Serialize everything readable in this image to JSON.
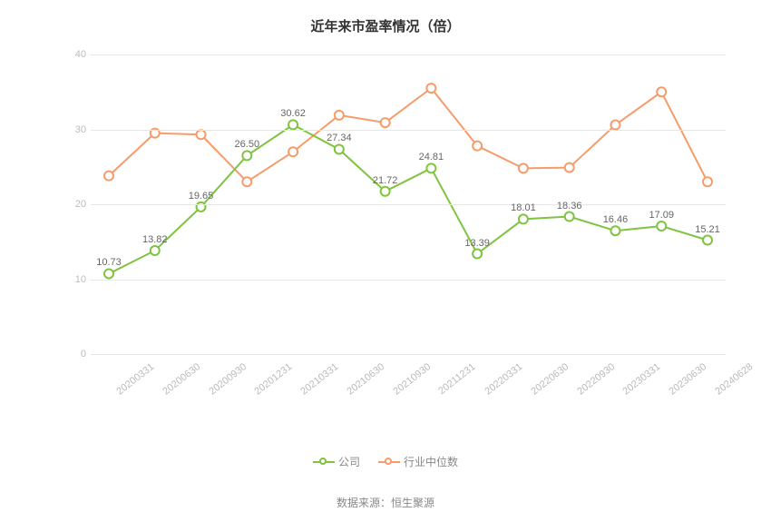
{
  "title": "近年来市盈率情况（倍）",
  "source_label": "数据来源：恒生聚源",
  "chart": {
    "type": "line",
    "background_color": "#ffffff",
    "grid_color": "#e6e6e6",
    "tick_color": "#bbbbbb",
    "label_color": "#666666",
    "title_color": "#333333",
    "title_fontsize": 15,
    "tick_fontsize": 11,
    "label_fontsize": 11,
    "ylim": [
      0,
      40
    ],
    "ytick_step": 10,
    "yticks": [
      0,
      10,
      20,
      30,
      40
    ],
    "x_labels": [
      "20200331",
      "20200630",
      "20200930",
      "20201231",
      "20210331",
      "20210630",
      "20210930",
      "20211231",
      "20220331",
      "20220630",
      "20220930",
      "20230331",
      "20230630",
      "20240628"
    ],
    "series": [
      {
        "name": "公司",
        "color": "#7ec43e",
        "line_width": 2,
        "marker": "circle",
        "marker_size": 5,
        "marker_fill": "#ffffff",
        "show_labels": true,
        "values": [
          10.73,
          13.82,
          19.65,
          26.5,
          30.62,
          27.34,
          21.72,
          24.81,
          13.39,
          18.01,
          18.36,
          16.46,
          17.09,
          15.21
        ]
      },
      {
        "name": "行业中位数",
        "color": "#f79b6b",
        "line_width": 2,
        "marker": "circle",
        "marker_size": 5,
        "marker_fill": "#ffffff",
        "show_labels": false,
        "values": [
          23.8,
          29.5,
          29.3,
          23.0,
          27.0,
          31.9,
          30.9,
          35.5,
          27.8,
          24.8,
          24.9,
          30.6,
          35.0,
          23.0
        ]
      }
    ]
  },
  "legend": {
    "items": [
      {
        "label": "公司",
        "color": "#7ec43e"
      },
      {
        "label": "行业中位数",
        "color": "#f79b6b"
      }
    ]
  }
}
